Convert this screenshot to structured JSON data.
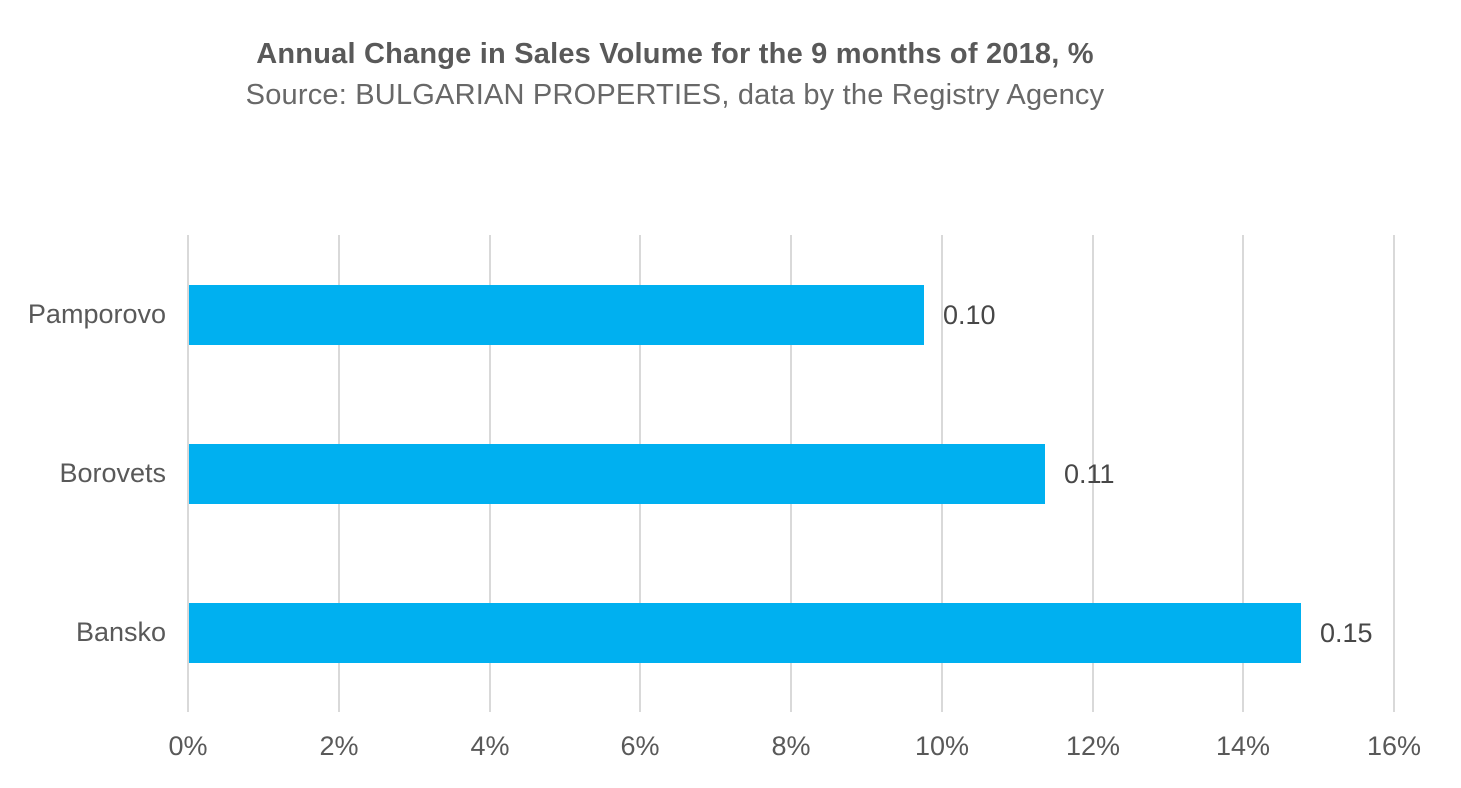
{
  "header": {
    "title": "Annual Change in Sales Volume for the 9 months of 2018, %",
    "subtitle": "Source: BULGARIAN PROPERTIES, data by the Registry Agency"
  },
  "colors": {
    "bar": "#00b0f0",
    "grid": "#d9d9d9",
    "title_text": "#595959",
    "axis_text": "#595959",
    "data_label_text": "#474747"
  },
  "chart_data": {
    "type": "bar",
    "orientation": "horizontal",
    "title": "Annual Change in Sales Volume for the 9 months of 2018, %",
    "subtitle": "Source: BULGARIAN PROPERTIES, data by the Registry Agency",
    "categories": [
      "Pamporovo",
      "Borovets",
      "Bansko"
    ],
    "values": [
      0.0975,
      0.1135,
      0.1475
    ],
    "data_labels": [
      "0.10",
      "0.11",
      "0.15"
    ],
    "xlabel": "",
    "ylabel": "",
    "xlim": [
      0,
      0.16
    ],
    "x_tick_step": 0.02,
    "x_tick_labels": [
      "0%",
      "2%",
      "4%",
      "6%",
      "8%",
      "10%",
      "12%",
      "14%",
      "16%"
    ],
    "grid": true,
    "legend": false
  }
}
